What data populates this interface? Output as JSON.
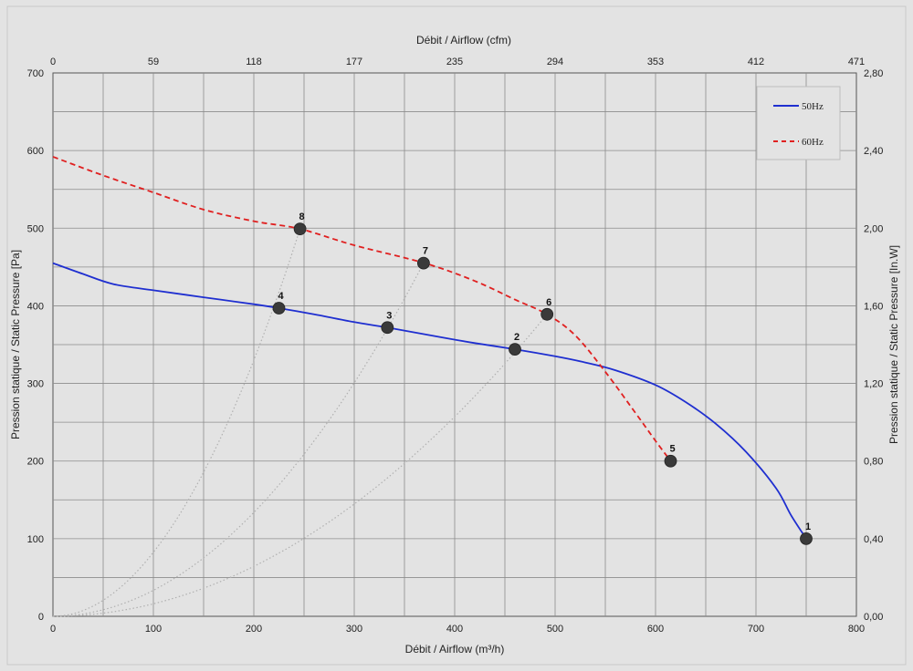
{
  "chart_data": {
    "type": "line",
    "title": "",
    "xlabel": "Débit / Airflow (m³/h)",
    "x2label": "Débit / Airflow (cfm)",
    "ylabel": "Pression statique / Static Pressure [Pa]",
    "y2label": "Pression statique / Static Pressure [In.W]",
    "xlim": [
      0,
      800
    ],
    "ylim": [
      0,
      700
    ],
    "grid": true,
    "legend_position": "top-right",
    "x_ticks": [
      "0",
      "100",
      "200",
      "300",
      "400",
      "500",
      "600",
      "700",
      "800"
    ],
    "x2_ticks": [
      "0",
      "59",
      "118",
      "177",
      "235",
      "294",
      "353",
      "412",
      "471"
    ],
    "y_ticks": [
      "0",
      "100",
      "200",
      "300",
      "400",
      "500",
      "600",
      "700"
    ],
    "y2_ticks": [
      "0,00",
      "0,40",
      "0,80",
      "1,20",
      "1,60",
      "2,00",
      "2,40",
      "2,80"
    ],
    "series": [
      {
        "name": "50Hz",
        "color": "#1f2fd0",
        "style": "solid",
        "x": [
          0,
          30,
          60,
          100,
          150,
          200,
          225,
          260,
          300,
          333,
          380,
          420,
          460,
          500,
          530,
          560,
          600,
          630,
          660,
          690,
          720,
          735,
          750
        ],
        "y": [
          455,
          441,
          428,
          420,
          411,
          402,
          397,
          389,
          379,
          372,
          361,
          352,
          344,
          335,
          327,
          317,
          298,
          276,
          248,
          212,
          165,
          130,
          100
        ]
      },
      {
        "name": "60Hz",
        "color": "#e02020",
        "style": "dashed",
        "x": [
          0,
          50,
          100,
          150,
          200,
          246,
          300,
          370,
          420,
          460,
          492,
          520,
          550,
          580,
          600,
          615
        ],
        "y": [
          592,
          568,
          546,
          524,
          509,
          499,
          478,
          455,
          432,
          408,
          389,
          362,
          315,
          262,
          226,
          200
        ]
      }
    ],
    "points": [
      {
        "label": "1",
        "x": 750,
        "y": 100
      },
      {
        "label": "2",
        "x": 460,
        "y": 344
      },
      {
        "label": "3",
        "x": 333,
        "y": 372
      },
      {
        "label": "4",
        "x": 225,
        "y": 397
      },
      {
        "label": "5",
        "x": 615,
        "y": 200
      },
      {
        "label": "6",
        "x": 492,
        "y": 389
      },
      {
        "label": "7",
        "x": 369,
        "y": 455
      },
      {
        "label": "8",
        "x": 246,
        "y": 499
      }
    ],
    "system_curves": [
      {
        "through": [
          492,
          389
        ]
      },
      {
        "through": [
          369,
          455
        ]
      },
      {
        "through": [
          246,
          499
        ]
      }
    ]
  }
}
